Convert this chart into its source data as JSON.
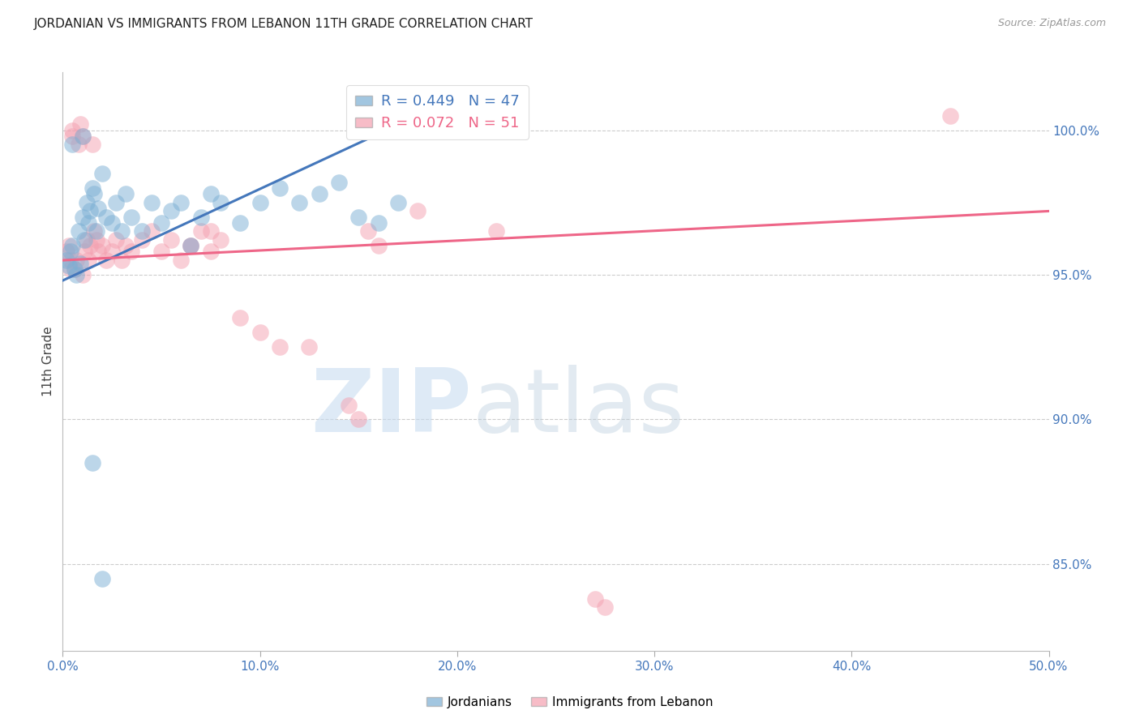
{
  "title": "JORDANIAN VS IMMIGRANTS FROM LEBANON 11TH GRADE CORRELATION CHART",
  "source": "Source: ZipAtlas.com",
  "ylabel": "11th Grade",
  "xlim": [
    0.0,
    50.0
  ],
  "ylim": [
    82.0,
    102.0
  ],
  "yticks": [
    85.0,
    90.0,
    95.0,
    100.0
  ],
  "xticks": [
    0.0,
    10.0,
    20.0,
    30.0,
    40.0,
    50.0
  ],
  "blue_R": 0.449,
  "blue_N": 47,
  "pink_R": 0.072,
  "pink_N": 51,
  "blue_color": "#7BAFD4",
  "pink_color": "#F4A0B0",
  "blue_line_color": "#4477BB",
  "pink_line_color": "#EE6688",
  "legend_blue_label": "Jordanians",
  "legend_pink_label": "Immigrants from Lebanon",
  "blue_scatter_x": [
    0.2,
    0.3,
    0.4,
    0.5,
    0.5,
    0.6,
    0.7,
    0.8,
    0.9,
    1.0,
    1.0,
    1.1,
    1.2,
    1.3,
    1.4,
    1.5,
    1.6,
    1.7,
    1.8,
    2.0,
    2.2,
    2.5,
    2.7,
    3.0,
    3.2,
    3.5,
    4.0,
    4.5,
    5.0,
    5.5,
    6.0,
    6.5,
    7.0,
    7.5,
    8.0,
    9.0,
    10.0,
    11.0,
    12.0,
    13.0,
    14.0,
    15.0,
    16.0,
    17.0,
    18.0,
    1.5,
    2.0
  ],
  "blue_scatter_y": [
    95.5,
    95.3,
    95.8,
    96.0,
    99.5,
    95.2,
    95.0,
    96.5,
    95.4,
    97.0,
    99.8,
    96.2,
    97.5,
    96.8,
    97.2,
    98.0,
    97.8,
    96.5,
    97.3,
    98.5,
    97.0,
    96.8,
    97.5,
    96.5,
    97.8,
    97.0,
    96.5,
    97.5,
    96.8,
    97.2,
    97.5,
    96.0,
    97.0,
    97.8,
    97.5,
    96.8,
    97.5,
    98.0,
    97.5,
    97.8,
    98.2,
    97.0,
    96.8,
    97.5,
    100.2,
    88.5,
    84.5
  ],
  "pink_scatter_x": [
    0.2,
    0.3,
    0.4,
    0.5,
    0.5,
    0.6,
    0.7,
    0.8,
    0.9,
    1.0,
    1.0,
    1.1,
    1.2,
    1.3,
    1.4,
    1.5,
    1.6,
    1.7,
    1.8,
    2.0,
    2.2,
    2.5,
    2.7,
    3.0,
    3.2,
    3.5,
    4.0,
    4.5,
    5.0,
    5.5,
    6.0,
    6.5,
    7.0,
    7.5,
    8.0,
    9.0,
    10.0,
    11.0,
    12.5,
    14.5,
    15.0,
    15.5,
    16.0,
    18.0,
    22.0,
    27.0,
    27.5,
    45.0,
    6.5,
    7.5,
    0.4
  ],
  "pink_scatter_y": [
    95.8,
    96.0,
    95.5,
    99.8,
    100.0,
    95.2,
    95.5,
    99.5,
    100.2,
    95.0,
    99.8,
    95.8,
    96.2,
    95.5,
    96.0,
    99.5,
    96.5,
    96.2,
    95.8,
    96.0,
    95.5,
    95.8,
    96.2,
    95.5,
    96.0,
    95.8,
    96.2,
    96.5,
    95.8,
    96.2,
    95.5,
    96.0,
    96.5,
    95.8,
    96.2,
    93.5,
    93.0,
    92.5,
    92.5,
    90.5,
    90.0,
    96.5,
    96.0,
    97.2,
    96.5,
    83.8,
    83.5,
    100.5,
    96.0,
    96.5,
    95.2
  ],
  "blue_line_x0": 0.0,
  "blue_line_y0": 94.8,
  "blue_line_x1": 18.0,
  "blue_line_y1": 100.5,
  "pink_line_x0": 0.0,
  "pink_line_y0": 95.5,
  "pink_line_x1": 50.0,
  "pink_line_y1": 97.2
}
